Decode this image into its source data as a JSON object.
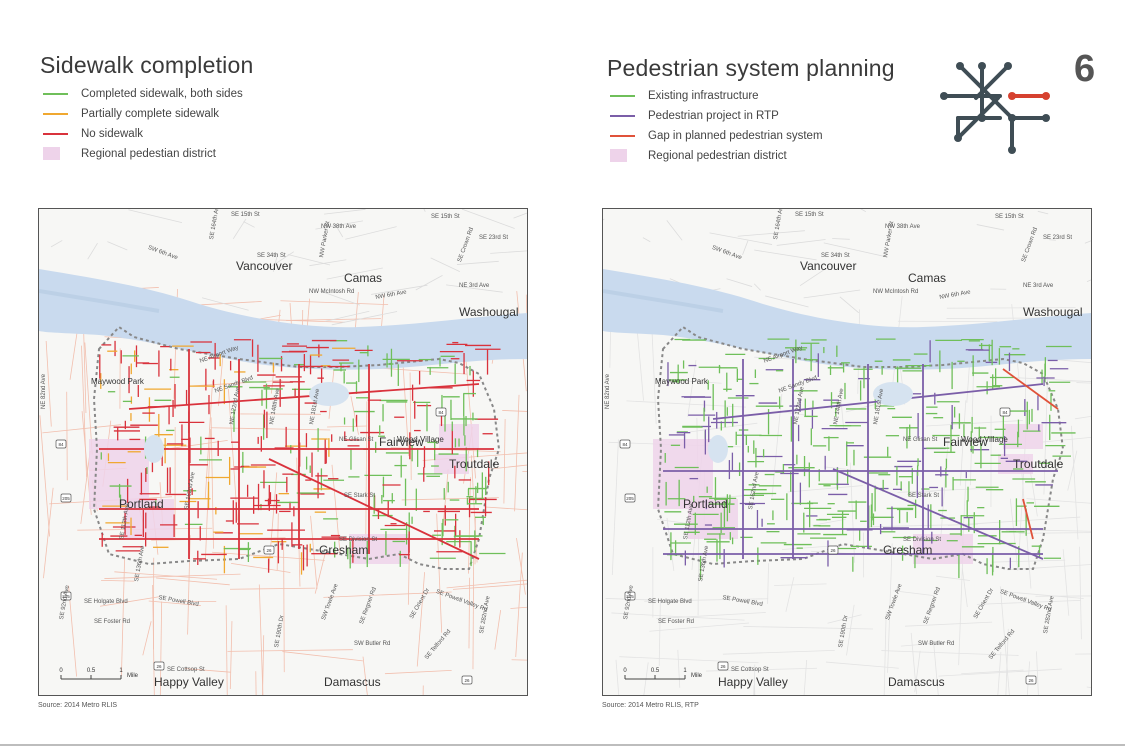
{
  "left_panel": {
    "title": "Sidewalk completion",
    "legend": [
      {
        "label": "Completed sidewalk, both sides",
        "color": "#6fbf5a",
        "kind": "line"
      },
      {
        "label": "Partially complete sidewalk",
        "color": "#f0a830",
        "kind": "line"
      },
      {
        "label": "No sidewalk",
        "color": "#d9323c",
        "kind": "line"
      },
      {
        "label": "Regional pedestian district",
        "color": "#eed3ea",
        "kind": "area"
      }
    ],
    "source": "Source: 2014 Metro RLIS"
  },
  "right_panel": {
    "title": "Pedestrian system planning",
    "legend": [
      {
        "label": "Existing infrastructure",
        "color": "#6fbf5a",
        "kind": "line"
      },
      {
        "label": "Pedestrian project in RTP",
        "color": "#7b5ea8",
        "kind": "line"
      },
      {
        "label": "Gap in planned pedestrian system",
        "color": "#e0523a",
        "kind": "line"
      },
      {
        "label": "Regional pedestrian district",
        "color": "#eed3ea",
        "kind": "area"
      }
    ],
    "source": "Source: 2014 Metro RLIS, RTP"
  },
  "page_number": "6",
  "map_labels": {
    "cities": [
      "Vancouver",
      "Camas",
      "Washougal",
      "Maywood Park",
      "Fairview",
      "Wood Village",
      "Troutdale",
      "Portland",
      "Gresham",
      "Happy Valley",
      "Damascus"
    ],
    "streets": [
      "SE 15th St",
      "NW 38th Ave",
      "SE 15th St",
      "SE 23rd St",
      "SE 164th Ave",
      "SE 34th St",
      "SW 6th Ave",
      "NW Parker St",
      "SE Crown Rd",
      "NE 3rd Ave",
      "NW McIntosh Rd",
      "NW 6th Ave",
      "NE 82nd Ave",
      "SE Holgate Blvd",
      "SE Powell Blvd",
      "SE Foster Rd",
      "SE 92nd Ave",
      "SE 136th Ave",
      "SE Powell Valley Rd",
      "SW Towle Ave",
      "SE Regner Rd",
      "SE Orient Dr",
      "SW Butler Rd",
      "SE 190th Dr",
      "SE 282nd Ave",
      "SE Telford Rd",
      "SE Cottsop St",
      "NE Airport Way",
      "NE Sandy Blvd",
      "NE Glisan St",
      "SE Stark St",
      "SE Division St",
      "SE 112th Ave",
      "SE 162nd Ave",
      "NE 122nd Ave",
      "NE 148th Ave",
      "NE 181st Ave"
    ],
    "shields": [
      "205",
      "84",
      "26",
      "84",
      "205",
      "26",
      "26"
    ]
  },
  "scale_bar": {
    "ticks": [
      "0",
      "0.5",
      "1"
    ],
    "unit": "Mile"
  },
  "colors": {
    "water": "#d6e3f0",
    "river": "#c9daee",
    "background_roads": "#f3c3b0",
    "green": "#6fbf5a",
    "red": "#d9323c",
    "orange": "#f0a830",
    "purple": "#7b5ea8",
    "gap": "#e0523a",
    "district": "#eed3ea",
    "icon_dark": "#3f4d55",
    "icon_accent": "#d6412f"
  },
  "icons": {
    "network": "transit-network-icon"
  }
}
